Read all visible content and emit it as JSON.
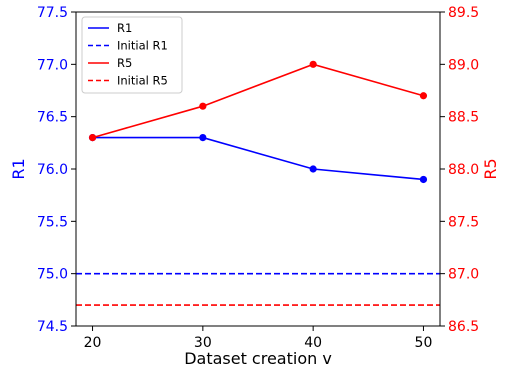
{
  "chart_data": {
    "type": "line",
    "x": [
      20,
      30,
      40,
      50
    ],
    "xlabel": "Dataset creation v",
    "x_ticks": [
      20,
      30,
      40,
      50
    ],
    "xlim": [
      18.5,
      51.5
    ],
    "left_axis": {
      "label": "R1",
      "color": "#0000ff",
      "ylim": [
        74.5,
        77.5
      ],
      "ticks": [
        "74.5",
        "75.0",
        "75.5",
        "76.0",
        "76.5",
        "77.0",
        "77.5"
      ]
    },
    "right_axis": {
      "label": "R5",
      "color": "#ff0000",
      "ylim": [
        86.5,
        89.5
      ],
      "ticks": [
        "86.5",
        "87.0",
        "87.5",
        "88.0",
        "88.5",
        "89.0",
        "89.5"
      ]
    },
    "series": [
      {
        "name": "R1",
        "axis": "left",
        "color": "#0000ff",
        "style": "solid",
        "marker": true,
        "values": [
          76.3,
          76.3,
          76.0,
          75.9
        ]
      },
      {
        "name": "Initial R1",
        "axis": "left",
        "color": "#0000ff",
        "style": "dashed",
        "marker": false,
        "constant": 75.0
      },
      {
        "name": "R5",
        "axis": "right",
        "color": "#ff0000",
        "style": "solid",
        "marker": true,
        "values": [
          88.3,
          88.6,
          89.0,
          88.7
        ]
      },
      {
        "name": "Initial R5",
        "axis": "right",
        "color": "#ff0000",
        "style": "dashed",
        "marker": false,
        "constant": 86.7
      }
    ],
    "legend": {
      "placement": "top-left"
    },
    "grid": false
  }
}
